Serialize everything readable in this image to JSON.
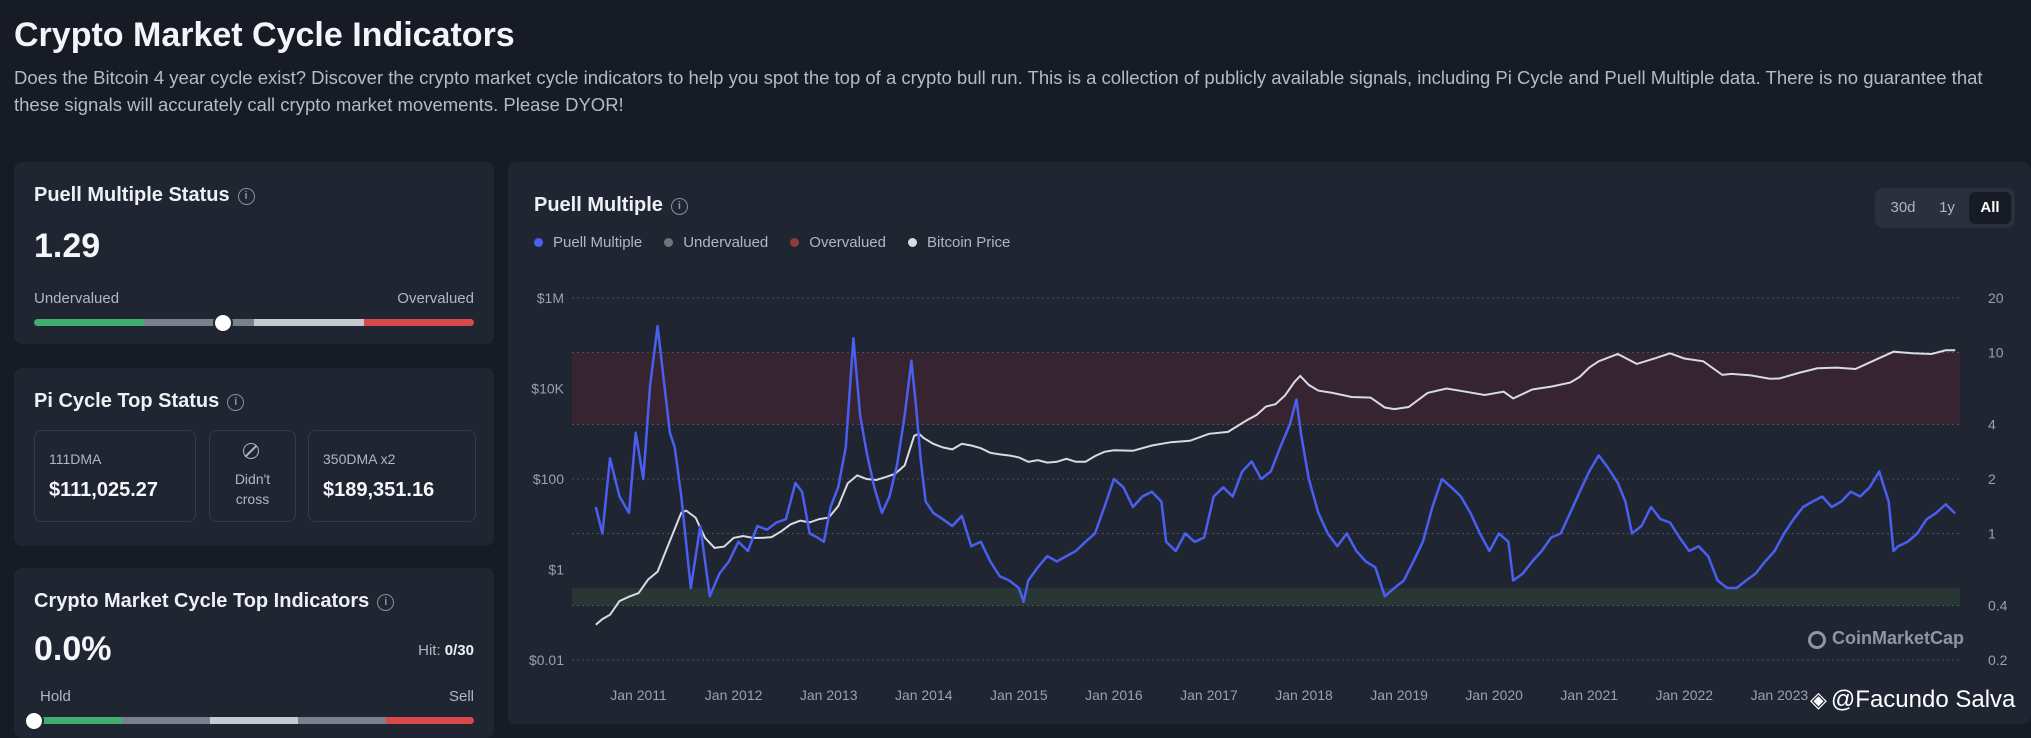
{
  "page": {
    "title": "Crypto Market Cycle Indicators",
    "description": "Does the Bitcoin 4 year cycle exist? Discover the crypto market cycle indicators to help you spot the top of a crypto bull run. This is a collection of publicly available signals, including Pi Cycle and Puell Multiple data. There is no guarantee that these signals will accurately call crypto market movements. Please DYOR!"
  },
  "puell_card": {
    "title": "Puell Multiple Status",
    "value": "1.29",
    "left_label": "Undervalued",
    "right_label": "Overvalued",
    "gauge_fraction": 0.43
  },
  "pi_card": {
    "title": "Pi Cycle Top Status",
    "ma111_label": "111DMA",
    "ma111_value": "$111,025.27",
    "cross_line1": "Didn't",
    "cross_line2": "cross",
    "ma350_label": "350DMA x2",
    "ma350_value": "$189,351.16"
  },
  "top_card": {
    "title": "Crypto Market Cycle Top Indicators",
    "value": "0.0%",
    "hit_label": "Hit:",
    "hit_value": "0/30",
    "left_label": "Hold",
    "right_label": "Sell",
    "gauge_fraction": 0.0
  },
  "chart_header": {
    "title": "Puell Multiple",
    "ranges": [
      "30d",
      "1y",
      "All"
    ],
    "active_range": "All"
  },
  "colors": {
    "puell": "#4a5ef0",
    "undervalued": "#6e737e",
    "overvalued": "#8c3c3c",
    "bitcoin_price": "#d8dbe2",
    "overvalued_zone": "#3b2530",
    "undervalued_zone": "#2a3935"
  },
  "watermark": "CoinMarketCap",
  "credit": "@Facundo Salva",
  "chart_data": {
    "type": "line",
    "title": "Puell Multiple",
    "legend": [
      "Puell Multiple",
      "Undervalued",
      "Overvalued",
      "Bitcoin Price"
    ],
    "legend_position": "top-left",
    "x_ticks": [
      "Jan 2011",
      "Jan 2012",
      "Jan 2013",
      "Jan 2014",
      "Jan 2015",
      "Jan 2016",
      "Jan 2017",
      "Jan 2018",
      "Jan 2019",
      "Jan 2020",
      "Jan 2021",
      "Jan 2022",
      "Jan 2023"
    ],
    "x_range": [
      2010.3,
      2024.9
    ],
    "y_left": {
      "scale": "log",
      "ticks": [
        "$1M",
        "$10K",
        "$100",
        "$1",
        "$0.01"
      ],
      "range": [
        0.01,
        1000000
      ]
    },
    "y_right": {
      "scale": "log",
      "ticks": [
        "20",
        "10",
        "4",
        "2",
        "1",
        "0.4",
        "0.2"
      ],
      "range": [
        0.2,
        20
      ]
    },
    "overvalued_band": [
      4,
      10
    ],
    "undervalued_band": [
      0.4,
      0.5
    ],
    "grid": true,
    "series": [
      {
        "name": "Puell Multiple",
        "axis": "right",
        "x": [
          2010.55,
          2010.62,
          2010.7,
          2010.8,
          2010.9,
          2010.97,
          2011.05,
          2011.12,
          2011.2,
          2011.28,
          2011.33,
          2011.38,
          2011.45,
          2011.55,
          2011.65,
          2011.75,
          2011.85,
          2011.95,
          2012.05,
          2012.15,
          2012.25,
          2012.35,
          2012.45,
          2012.55,
          2012.65,
          2012.72,
          2012.8,
          2012.88,
          2012.95,
          2013.02,
          2013.1,
          2013.18,
          2013.26,
          2013.33,
          2013.4,
          2013.48,
          2013.56,
          2013.64,
          2013.72,
          2013.8,
          2013.87,
          2013.92,
          2013.97,
          2014.02,
          2014.1,
          2014.2,
          2014.3,
          2014.4,
          2014.5,
          2014.6,
          2014.7,
          2014.8,
          2014.9,
          2015.0,
          2015.05,
          2015.1,
          2015.2,
          2015.3,
          2015.4,
          2015.5,
          2015.6,
          2015.7,
          2015.8,
          2015.9,
          2016.0,
          2016.1,
          2016.2,
          2016.3,
          2016.4,
          2016.5,
          2016.55,
          2016.65,
          2016.75,
          2016.85,
          2016.95,
          2017.05,
          2017.15,
          2017.25,
          2017.35,
          2017.45,
          2017.55,
          2017.65,
          2017.75,
          2017.85,
          2017.92,
          2017.97,
          2018.05,
          2018.15,
          2018.25,
          2018.35,
          2018.45,
          2018.55,
          2018.65,
          2018.75,
          2018.85,
          2018.95,
          2019.05,
          2019.15,
          2019.25,
          2019.35,
          2019.45,
          2019.55,
          2019.65,
          2019.75,
          2019.85,
          2019.95,
          2020.05,
          2020.15,
          2020.2,
          2020.3,
          2020.4,
          2020.5,
          2020.6,
          2020.7,
          2020.8,
          2020.9,
          2021.0,
          2021.1,
          2021.2,
          2021.3,
          2021.38,
          2021.45,
          2021.55,
          2021.65,
          2021.75,
          2021.85,
          2021.95,
          2022.05,
          2022.15,
          2022.25,
          2022.35,
          2022.45,
          2022.55,
          2022.65,
          2022.75,
          2022.85,
          2022.95,
          2023.05,
          2023.15,
          2023.25,
          2023.35,
          2023.45,
          2023.55,
          2023.65,
          2023.75,
          2023.85,
          2023.95,
          2024.05,
          2024.15,
          2024.2,
          2024.25,
          2024.35,
          2024.45,
          2024.55,
          2024.65,
          2024.75,
          2024.85
        ],
        "y": [
          1.4,
          1.0,
          2.6,
          1.6,
          1.3,
          3.6,
          2.0,
          6.5,
          14.0,
          6.0,
          3.6,
          3.0,
          1.6,
          0.5,
          1.1,
          0.45,
          0.6,
          0.7,
          0.9,
          0.8,
          1.1,
          1.05,
          1.15,
          1.2,
          1.9,
          1.7,
          1.0,
          0.95,
          0.9,
          1.4,
          1.8,
          3.0,
          12.0,
          4.5,
          2.8,
          1.8,
          1.3,
          1.6,
          2.4,
          4.5,
          9.0,
          5.0,
          2.5,
          1.5,
          1.3,
          1.2,
          1.1,
          1.25,
          0.85,
          0.9,
          0.7,
          0.58,
          0.55,
          0.5,
          0.42,
          0.55,
          0.65,
          0.75,
          0.7,
          0.75,
          0.8,
          0.9,
          1.0,
          1.4,
          2.0,
          1.8,
          1.4,
          1.6,
          1.7,
          1.5,
          0.9,
          0.8,
          1.0,
          0.9,
          0.95,
          1.6,
          1.8,
          1.6,
          2.2,
          2.5,
          2.0,
          2.2,
          3.0,
          4.0,
          5.5,
          3.5,
          2.0,
          1.3,
          1.0,
          0.85,
          1.0,
          0.8,
          0.7,
          0.65,
          0.45,
          0.5,
          0.55,
          0.7,
          0.9,
          1.4,
          2.0,
          1.8,
          1.6,
          1.3,
          1.0,
          0.8,
          1.0,
          0.9,
          0.55,
          0.6,
          0.7,
          0.8,
          0.95,
          1.0,
          1.3,
          1.7,
          2.2,
          2.7,
          2.3,
          1.9,
          1.5,
          1.0,
          1.1,
          1.4,
          1.2,
          1.15,
          0.95,
          0.8,
          0.85,
          0.75,
          0.55,
          0.5,
          0.5,
          0.55,
          0.6,
          0.7,
          0.8,
          1.0,
          1.2,
          1.4,
          1.5,
          1.6,
          1.4,
          1.5,
          1.7,
          1.6,
          1.8,
          2.2,
          1.5,
          0.8,
          0.85,
          0.9,
          1.0,
          1.2,
          1.3,
          1.45,
          1.29
        ]
      },
      {
        "name": "Bitcoin Price",
        "axis": "left",
        "x": [
          2010.55,
          2010.62,
          2010.7,
          2010.8,
          2010.9,
          2011.0,
          2011.1,
          2011.2,
          2011.3,
          2011.4,
          2011.45,
          2011.5,
          2011.6,
          2011.7,
          2011.8,
          2011.9,
          2012.0,
          2012.1,
          2012.2,
          2012.3,
          2012.4,
          2012.5,
          2012.6,
          2012.7,
          2012.8,
          2012.9,
          2013.0,
          2013.1,
          2013.2,
          2013.3,
          2013.4,
          2013.5,
          2013.6,
          2013.7,
          2013.8,
          2013.9,
          2013.95,
          2014.0,
          2014.1,
          2014.2,
          2014.3,
          2014.4,
          2014.5,
          2014.6,
          2014.7,
          2014.8,
          2014.9,
          2015.0,
          2015.1,
          2015.2,
          2015.3,
          2015.4,
          2015.5,
          2015.6,
          2015.7,
          2015.8,
          2015.9,
          2016.0,
          2016.2,
          2016.4,
          2016.6,
          2016.8,
          2017.0,
          2017.2,
          2017.4,
          2017.5,
          2017.6,
          2017.7,
          2017.8,
          2017.9,
          2017.96,
          2018.05,
          2018.15,
          2018.3,
          2018.5,
          2018.7,
          2018.85,
          2018.95,
          2019.1,
          2019.3,
          2019.5,
          2019.7,
          2019.9,
          2020.1,
          2020.2,
          2020.4,
          2020.6,
          2020.8,
          2020.9,
          2021.0,
          2021.1,
          2021.3,
          2021.5,
          2021.7,
          2021.85,
          2022.0,
          2022.2,
          2022.4,
          2022.5,
          2022.7,
          2022.9,
          2023.0,
          2023.2,
          2023.4,
          2023.6,
          2023.8,
          2024.0,
          2024.2,
          2024.4,
          2024.6,
          2024.75,
          2024.85
        ],
        "y": [
          0.06,
          0.08,
          0.1,
          0.2,
          0.25,
          0.3,
          0.6,
          0.9,
          3,
          10,
          18,
          20,
          14,
          5,
          3,
          3.2,
          5,
          5.5,
          5,
          5,
          5.2,
          7,
          10,
          12,
          11,
          13,
          14,
          25,
          80,
          120,
          100,
          95,
          110,
          130,
          200,
          900,
          1000,
          800,
          600,
          500,
          450,
          600,
          550,
          480,
          380,
          350,
          330,
          300,
          240,
          260,
          230,
          240,
          280,
          240,
          240,
          320,
          400,
          430,
          420,
          550,
          650,
          700,
          1000,
          1100,
          2000,
          2600,
          4000,
          4500,
          7000,
          14000,
          19000,
          12000,
          9000,
          8000,
          6500,
          6300,
          3800,
          3500,
          3900,
          8000,
          10000,
          8500,
          7200,
          8500,
          6000,
          9500,
          11000,
          13500,
          18000,
          29000,
          40000,
          58000,
          35000,
          47000,
          60000,
          46000,
          40000,
          20000,
          21000,
          19500,
          16500,
          16600,
          22000,
          28000,
          29000,
          27000,
          42000,
          65000,
          60000,
          58000,
          70000,
          70000
        ]
      }
    ]
  }
}
